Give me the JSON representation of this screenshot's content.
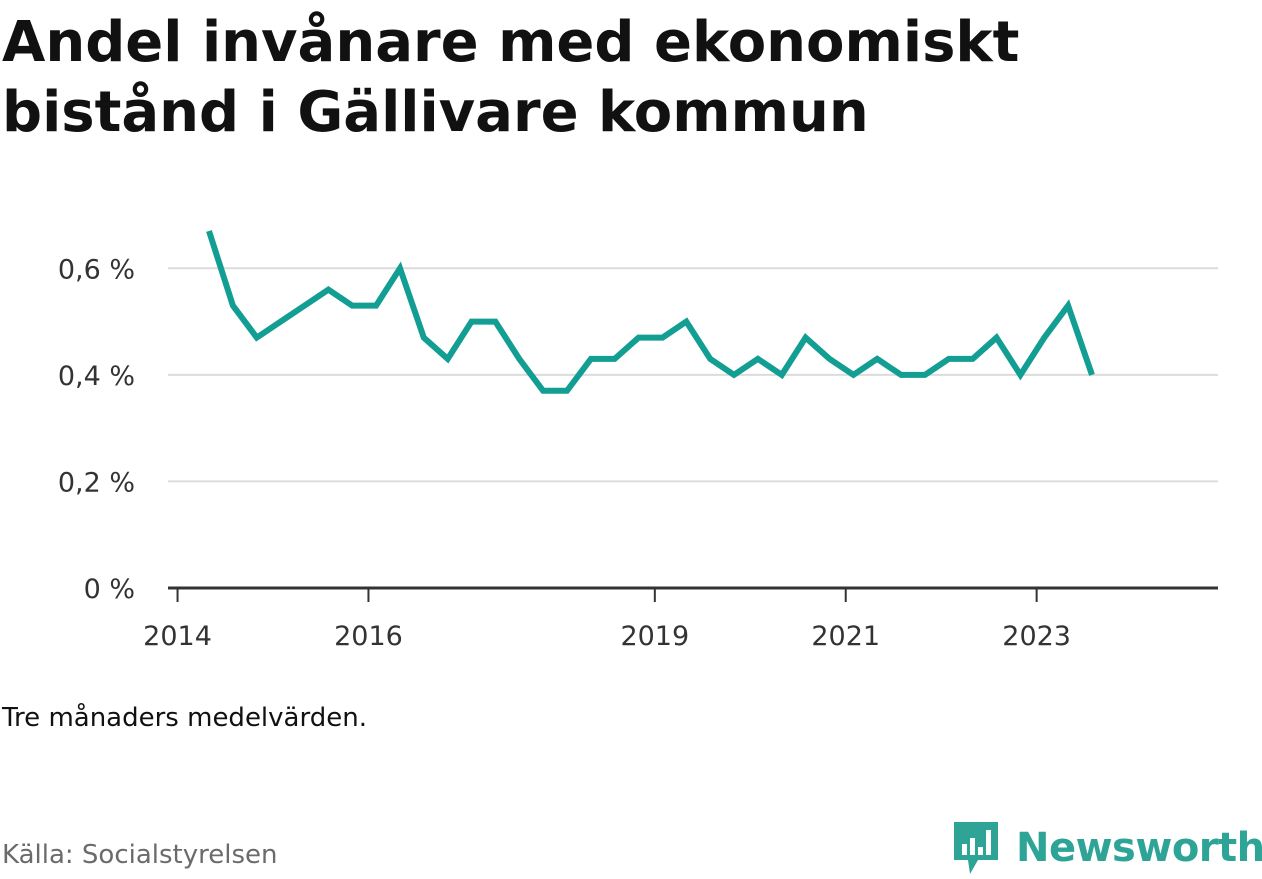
{
  "title_lines": [
    "Andel invånare med ekonomiskt",
    "bistånd i Gällivare kommun"
  ],
  "note": "Tre månaders medelvärden.",
  "source": "Källa: Socialstyrelsen",
  "brand": {
    "name": "Newsworthy",
    "icon": "newsworthy-logo-icon",
    "color": "#2ea497"
  },
  "chart_data": {
    "type": "line",
    "title": "Andel invånare med ekonomiskt bistånd i Gällivare kommun",
    "xlabel": "",
    "ylabel": "",
    "xlim": [
      2013.9,
      2024.9
    ],
    "ylim": [
      0,
      0.7
    ],
    "y_ticks": [
      0,
      0.2,
      0.4,
      0.6
    ],
    "y_tick_labels": [
      "0 %",
      "0,2 %",
      "0,4 %",
      "0,6 %"
    ],
    "x_ticks": [
      2014,
      2016,
      2019,
      2021,
      2023
    ],
    "x_tick_labels": [
      "2014",
      "2016",
      "2019",
      "2021",
      "2023"
    ],
    "grid": true,
    "line_color": "#139e94",
    "series": [
      {
        "x": [
          2014.33,
          2014.58,
          2014.83,
          2015.08,
          2015.33,
          2015.58,
          2015.83,
          2016.08,
          2016.33,
          2016.58,
          2016.83,
          2017.08,
          2017.33,
          2017.58,
          2017.83,
          2018.08,
          2018.33,
          2018.58,
          2018.83,
          2019.08,
          2019.33,
          2019.58,
          2019.83,
          2020.08,
          2020.33,
          2020.58,
          2020.83,
          2021.08,
          2021.33,
          2021.58,
          2021.83,
          2022.08,
          2022.33,
          2022.58,
          2022.83,
          2023.08,
          2023.33,
          2023.58
        ],
        "values": [
          0.67,
          0.53,
          0.47,
          0.5,
          0.53,
          0.56,
          0.53,
          0.53,
          0.6,
          0.47,
          0.43,
          0.5,
          0.5,
          0.43,
          0.37,
          0.37,
          0.43,
          0.43,
          0.47,
          0.47,
          0.5,
          0.43,
          0.4,
          0.43,
          0.4,
          0.47,
          0.43,
          0.4,
          0.43,
          0.4,
          0.4,
          0.43,
          0.43,
          0.47,
          0.4,
          0.47,
          0.53,
          0.4
        ]
      }
    ]
  }
}
